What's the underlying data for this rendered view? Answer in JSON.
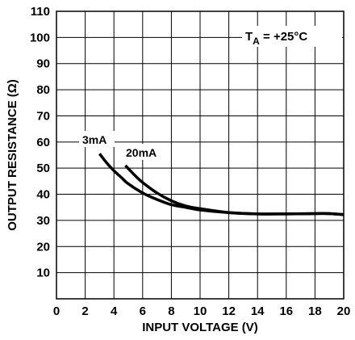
{
  "chart_data": {
    "type": "line",
    "title": "",
    "xlabel": "INPUT VOLTAGE (V)",
    "ylabel": "OUTPUT RESISTANCE (Ω)",
    "xlim": [
      0,
      20
    ],
    "ylim": [
      0,
      110
    ],
    "xticks": [
      0,
      2,
      4,
      6,
      8,
      10,
      12,
      14,
      16,
      18,
      20
    ],
    "yticks": [
      10,
      20,
      30,
      40,
      50,
      60,
      70,
      80,
      90,
      100,
      110
    ],
    "grid": true,
    "annotation": {
      "prefix": "T",
      "subscript": "A",
      "suffix": " = +25°C"
    },
    "series": [
      {
        "name": "3mA",
        "x": [
          3.0,
          3.5,
          4.0,
          4.5,
          5.0,
          6.0,
          7.0,
          8.0,
          9.0,
          10.0,
          12.0,
          14.0,
          16.0,
          18.0,
          19.0,
          20.0
        ],
        "y": [
          55.5,
          52.0,
          49.0,
          46.5,
          44.0,
          40.5,
          38.0,
          36.0,
          35.0,
          34.0,
          33.0,
          32.5,
          32.5,
          32.6,
          32.6,
          32.2
        ]
      },
      {
        "name": "20mA",
        "x": [
          4.8,
          5.5,
          6.0,
          7.0,
          8.0,
          9.0,
          10.0,
          12.0,
          14.0,
          16.0,
          18.0,
          19.0,
          20.0
        ],
        "y": [
          51.0,
          47.0,
          44.5,
          40.5,
          37.5,
          35.5,
          34.5,
          33.0,
          32.5,
          32.5,
          32.6,
          32.6,
          32.2
        ]
      }
    ],
    "series_labels": [
      "3mA",
      "20mA"
    ]
  },
  "colors": {
    "line": "#000000",
    "grid": "#000000",
    "background": "#ffffff"
  }
}
